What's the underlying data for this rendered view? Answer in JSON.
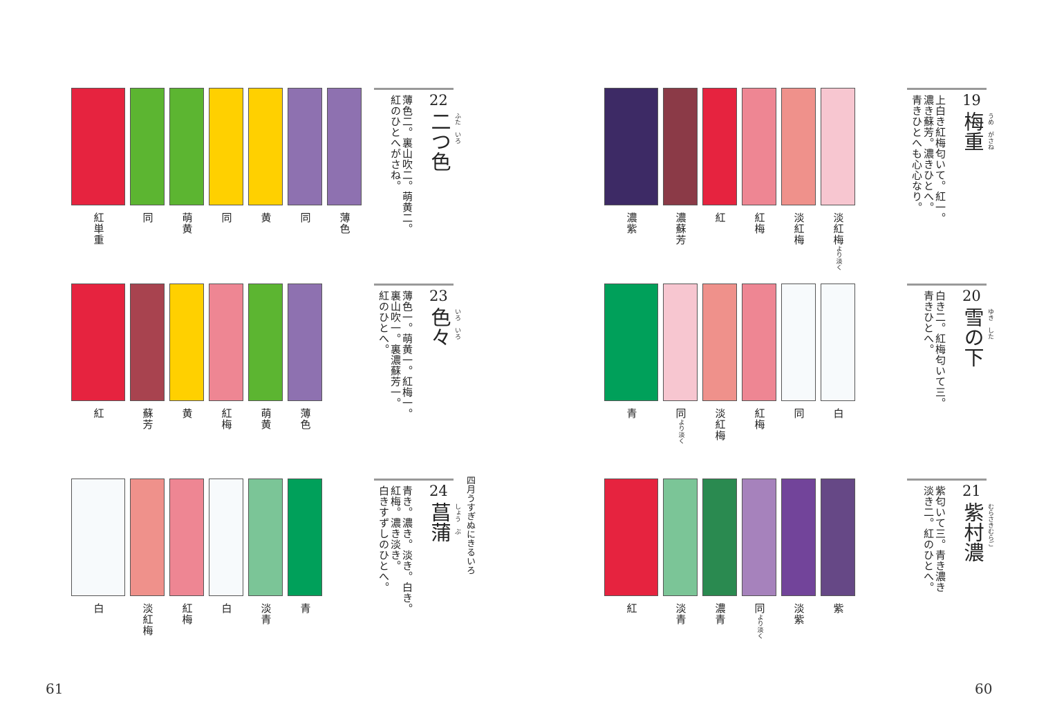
{
  "pages": {
    "left": "61",
    "right": "60"
  },
  "entries": [
    {
      "id": "e22",
      "number": "22",
      "title": "二つ色",
      "ruby": "ふた　いろ",
      "desc": [
        "薄色二。裏山吹二。萌黄二。",
        "紅のひとへがさね。"
      ],
      "swatches": [
        {
          "color": "#e6233f",
          "label": "紅単重"
        },
        {
          "color": "#5cb531",
          "label": "同"
        },
        {
          "color": "#5cb531",
          "label": "萌黄"
        },
        {
          "color": "#ffd000",
          "label": "同"
        },
        {
          "color": "#ffd000",
          "label": "黄"
        },
        {
          "color": "#8e71b0",
          "label": "同"
        },
        {
          "color": "#8e71b0",
          "label": "薄色"
        }
      ]
    },
    {
      "id": "e23",
      "number": "23",
      "title": "色々",
      "ruby": "いろ　いろ",
      "desc": [
        "薄色一。萌黄一。紅梅一。",
        "裏山吹一。裏濃蘇芳一。",
        "紅のひとへ。"
      ],
      "swatches": [
        {
          "color": "#e6233f",
          "label": "紅"
        },
        {
          "color": "#a8434f",
          "label": "蘇芳"
        },
        {
          "color": "#ffd000",
          "label": "黄"
        },
        {
          "color": "#ee8693",
          "label": "紅梅"
        },
        {
          "color": "#5cb531",
          "label": "萌黄"
        },
        {
          "color": "#8e71b0",
          "label": "薄色"
        }
      ]
    },
    {
      "id": "e24",
      "number": "24",
      "title": "菖蒲",
      "ruby": "しょう　ぶ",
      "subtitle": "四月うすぎぬにきるいろ",
      "desc": [
        "青き。濃き。淡き。白き。",
        "紅梅。濃き淡き。",
        "白きすずしのひとへ。"
      ],
      "swatches": [
        {
          "color": "#f7fafc",
          "label": "白"
        },
        {
          "color": "#ef918b",
          "label": "淡紅梅"
        },
        {
          "color": "#ee8693",
          "label": "紅梅"
        },
        {
          "color": "#f7fafc",
          "label": "白"
        },
        {
          "color": "#7bc597",
          "label": "淡青"
        },
        {
          "color": "#00a05a",
          "label": "青"
        }
      ]
    },
    {
      "id": "e19",
      "number": "19",
      "title": "梅重",
      "ruby": "うめ　がさね",
      "desc": [
        "上白き紅梅匂いて。紅一。",
        "濃き蘇芳。濃きひとへ。",
        "青きひとへも心心なり。"
      ],
      "swatches": [
        {
          "color": "#3d2a65",
          "label": "濃紫"
        },
        {
          "color": "#8b3a47",
          "label": "濃蘇芳"
        },
        {
          "color": "#e6233f",
          "label": "紅"
        },
        {
          "color": "#ee8693",
          "label": "紅梅"
        },
        {
          "color": "#ef918b",
          "label": "淡紅梅"
        },
        {
          "color": "#f7c6d0",
          "label": "淡紅梅",
          "note": "より淡く"
        }
      ]
    },
    {
      "id": "e20",
      "number": "20",
      "title": "雪の下",
      "ruby": "ゆき　した",
      "desc": [
        "白き二。紅梅匂いて三。",
        "青きひとへ。"
      ],
      "swatches": [
        {
          "color": "#00a05a",
          "label": "青"
        },
        {
          "color": "#f7c6d0",
          "label": "同",
          "note": "より淡く"
        },
        {
          "color": "#ef918b",
          "label": "淡紅梅"
        },
        {
          "color": "#ee8693",
          "label": "紅梅"
        },
        {
          "color": "#f7fafc",
          "label": "同"
        },
        {
          "color": "#f7fafc",
          "label": "白"
        }
      ]
    },
    {
      "id": "e21",
      "number": "21",
      "title": "紫村濃",
      "ruby": "むらさきむらご",
      "desc": [
        "紫匂いて三。青き濃き",
        "淡き二。紅のひとへ。"
      ],
      "swatches": [
        {
          "color": "#e6233f",
          "label": "紅"
        },
        {
          "color": "#7bc597",
          "label": "淡青"
        },
        {
          "color": "#2a8a50",
          "label": "濃青"
        },
        {
          "color": "#a682bc",
          "label": "同",
          "note": "より淡く"
        },
        {
          "color": "#72449a",
          "label": "淡紫"
        },
        {
          "color": "#664886",
          "label": "紫"
        }
      ]
    }
  ]
}
